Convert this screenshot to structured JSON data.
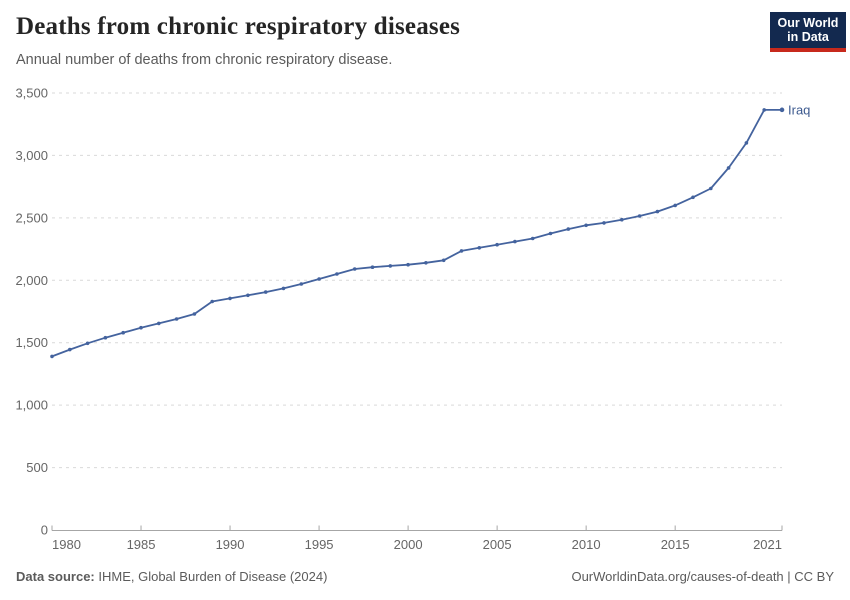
{
  "header": {
    "title": "Deaths from chronic respiratory diseases",
    "subtitle": "Annual number of deaths from chronic respiratory disease."
  },
  "logo": {
    "line1": "Our World",
    "line2": "in Data",
    "bg_color": "#13294f",
    "accent_color": "#c7291c"
  },
  "chart_data": {
    "type": "line",
    "title": "Deaths from chronic respiratory diseases",
    "subtitle": "Annual number of deaths from chronic respiratory disease.",
    "x": [
      1980,
      1981,
      1982,
      1983,
      1984,
      1985,
      1986,
      1987,
      1988,
      1989,
      1990,
      1991,
      1992,
      1993,
      1994,
      1995,
      1996,
      1997,
      1998,
      1999,
      2000,
      2001,
      2002,
      2003,
      2004,
      2005,
      2006,
      2007,
      2008,
      2009,
      2010,
      2011,
      2012,
      2013,
      2014,
      2015,
      2016,
      2017,
      2018,
      2019,
      2020,
      2021
    ],
    "series": [
      {
        "name": "Iraq",
        "color": "#44639e",
        "label_color": "#3d5a8f",
        "values": [
          1390,
          1445,
          1495,
          1540,
          1580,
          1620,
          1655,
          1690,
          1730,
          1830,
          1855,
          1880,
          1905,
          1935,
          1970,
          2010,
          2050,
          2090,
          2105,
          2115,
          2125,
          2140,
          2160,
          2235,
          2260,
          2285,
          2310,
          2335,
          2375,
          2410,
          2440,
          2460,
          2485,
          2515,
          2550,
          2600,
          2665,
          2735,
          2900,
          3100,
          3365,
          3365
        ]
      }
    ],
    "ylim": [
      0,
      3500
    ],
    "yticks": [
      0,
      500,
      1000,
      1500,
      2000,
      2500,
      3000,
      3500
    ],
    "xticks": [
      1980,
      1985,
      1990,
      1995,
      2000,
      2005,
      2010,
      2015,
      2021
    ],
    "grid": "horizontal-dashed",
    "legend_position": "end-of-line"
  },
  "footer": {
    "datasource_label": "Data source:",
    "datasource_value": "IHME, Global Burden of Disease (2024)",
    "credit": "OurWorldinData.org/causes-of-death | CC BY"
  }
}
